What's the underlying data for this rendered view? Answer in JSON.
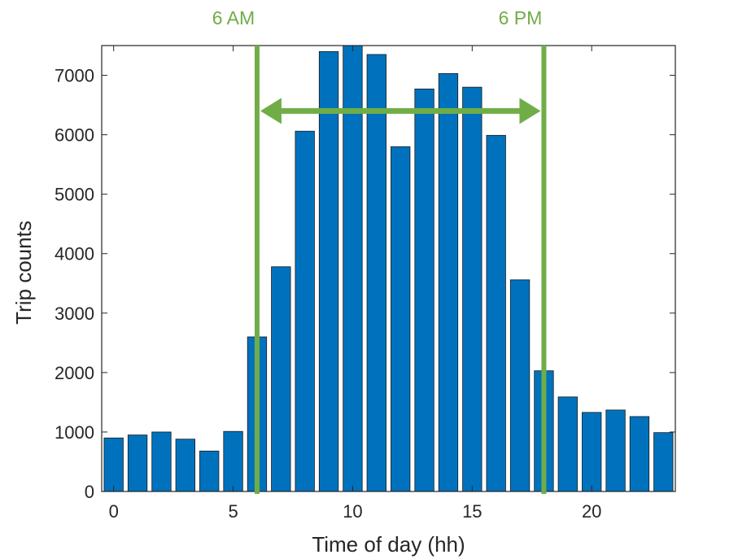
{
  "chart_data": {
    "type": "bar",
    "xlabel": "Time of day (hh)",
    "ylabel": "Trip counts",
    "xlim": [
      -0.5,
      23.5
    ],
    "ylim": [
      0,
      7500
    ],
    "xticks": [
      0,
      5,
      10,
      15,
      20
    ],
    "yticks": [
      0,
      1000,
      2000,
      3000,
      4000,
      5000,
      6000,
      7000
    ],
    "grid": false,
    "x": [
      0,
      1,
      2,
      3,
      4,
      5,
      6,
      7,
      8,
      9,
      10,
      11,
      12,
      13,
      14,
      15,
      16,
      17,
      18,
      19,
      20,
      21,
      22,
      23
    ],
    "values": [
      900,
      950,
      1000,
      880,
      680,
      1010,
      2600,
      3780,
      6060,
      7400,
      7520,
      7350,
      5800,
      6770,
      7030,
      6800,
      5990,
      3560,
      2030,
      1590,
      1330,
      1370,
      1260,
      990
    ],
    "bar_color": "#0072BD",
    "annotations": {
      "markers": [
        {
          "x": 6,
          "label": "6 AM"
        },
        {
          "x": 18,
          "label": "6 PM"
        }
      ],
      "arrow": {
        "from": 6,
        "to": 18,
        "y": 6400
      },
      "color": "#70AD47"
    }
  }
}
